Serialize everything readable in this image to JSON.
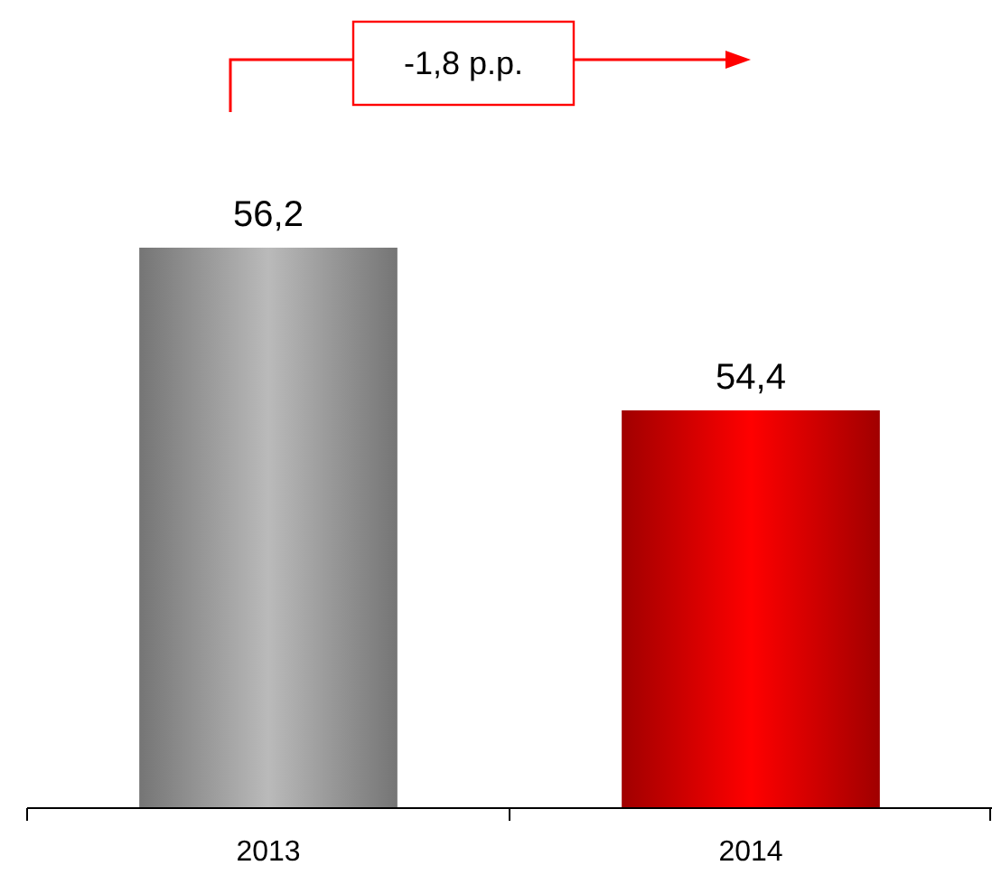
{
  "chart_data": {
    "type": "bar",
    "categories": [
      "2013",
      "2014"
    ],
    "values": [
      56.2,
      54.4
    ],
    "colors": [
      "#bababa",
      "#ff0000"
    ],
    "ylim": [
      50,
      56.2
    ],
    "value_labels": [
      "56,2",
      "54,4"
    ],
    "annotations": [
      "-1,8 p.p."
    ]
  }
}
